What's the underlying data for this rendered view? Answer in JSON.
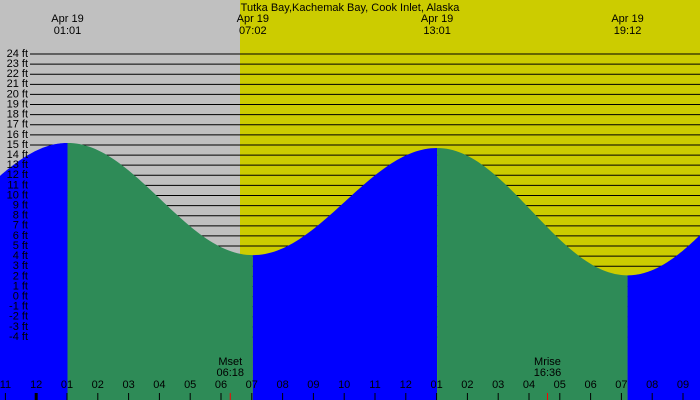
{
  "chart_data": {
    "type": "tide",
    "title": "Tutka Bay,Kachemak Bay, Cook Inlet, Alaska",
    "extremes": [
      {
        "date": "Apr 19",
        "time": "01:01",
        "height": 15.2
      },
      {
        "date": "Apr 19",
        "time": "07:02",
        "height": 4.1
      },
      {
        "date": "Apr 19",
        "time": "13:01",
        "height": 14.7
      },
      {
        "date": "Apr 19",
        "time": "19:12",
        "height": 2.1
      }
    ],
    "ylim": [
      -4,
      24
    ],
    "yticks": [
      {
        "value": 24,
        "label": "24 ft"
      },
      {
        "value": 23,
        "label": "23 ft"
      },
      {
        "value": 22,
        "label": "22 ft"
      },
      {
        "value": 21,
        "label": "21 ft"
      },
      {
        "value": 20,
        "label": "20 ft"
      },
      {
        "value": 19,
        "label": "19 ft"
      },
      {
        "value": 18,
        "label": "18 ft"
      },
      {
        "value": 17,
        "label": "17 ft"
      },
      {
        "value": 16,
        "label": "16 ft"
      },
      {
        "value": 15,
        "label": "15 ft"
      },
      {
        "value": 14,
        "label": "14 ft"
      },
      {
        "value": 13,
        "label": "13 ft"
      },
      {
        "value": 12,
        "label": "12 ft"
      },
      {
        "value": 11,
        "label": "11 ft"
      },
      {
        "value": 10,
        "label": "10 ft"
      },
      {
        "value": 9,
        "label": "9 ft"
      },
      {
        "value": 8,
        "label": "8 ft"
      },
      {
        "value": 7,
        "label": "7 ft"
      },
      {
        "value": 6,
        "label": "6 ft"
      },
      {
        "value": 5,
        "label": "5 ft"
      },
      {
        "value": 4,
        "label": "4 ft"
      },
      {
        "value": 3,
        "label": "3 ft"
      },
      {
        "value": 2,
        "label": "2 ft"
      },
      {
        "value": 1,
        "label": "1 ft"
      },
      {
        "value": 0,
        "label": "0 ft"
      },
      {
        "value": -1,
        "label": "-1 ft"
      },
      {
        "value": -2,
        "label": "-2 ft"
      },
      {
        "value": -3,
        "label": "-3 ft"
      },
      {
        "value": -4,
        "label": "-4 ft"
      }
    ],
    "xticks": [
      {
        "value": -1,
        "label": "11"
      },
      {
        "value": 0,
        "label": "12"
      },
      {
        "value": 1,
        "label": "01"
      },
      {
        "value": 2,
        "label": "02"
      },
      {
        "value": 3,
        "label": "03"
      },
      {
        "value": 4,
        "label": "04"
      },
      {
        "value": 5,
        "label": "05"
      },
      {
        "value": 6,
        "label": "06"
      },
      {
        "value": 7,
        "label": "07"
      },
      {
        "value": 8,
        "label": "08"
      },
      {
        "value": 9,
        "label": "09"
      },
      {
        "value": 10,
        "label": "10"
      },
      {
        "value": 11,
        "label": "11"
      },
      {
        "value": 12,
        "label": "12"
      },
      {
        "value": 13,
        "label": "01"
      },
      {
        "value": 14,
        "label": "02"
      },
      {
        "value": 15,
        "label": "03"
      },
      {
        "value": 16,
        "label": "04"
      },
      {
        "value": 17,
        "label": "05"
      },
      {
        "value": 18,
        "label": "06"
      },
      {
        "value": 19,
        "label": "07"
      },
      {
        "value": 20,
        "label": "08"
      },
      {
        "value": 21,
        "label": "09"
      }
    ],
    "moon": [
      {
        "event": "Mset",
        "time": "06:18"
      },
      {
        "event": "Mrise",
        "time": "16:36"
      }
    ],
    "colors": {
      "rising": "#0000ff",
      "falling": "#2e8b57"
    }
  }
}
